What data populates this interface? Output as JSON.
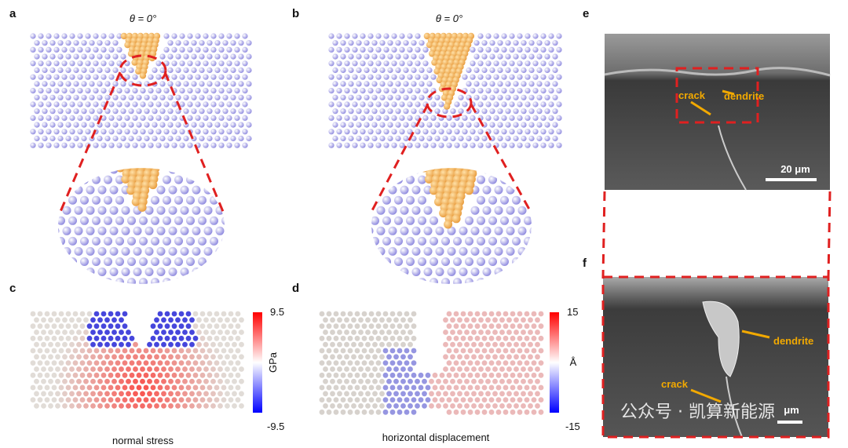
{
  "panels": {
    "a": {
      "label": "a",
      "angle": "θ = 0°"
    },
    "b": {
      "label": "b",
      "angle": "θ = 0°"
    },
    "c": {
      "label": "c",
      "colorbar": {
        "max": 9.5,
        "min": -9.5,
        "unit": "GPa"
      },
      "caption": "normal stress"
    },
    "d": {
      "label": "d",
      "colorbar": {
        "max": 15,
        "min": -15,
        "unit": "Å"
      },
      "caption": "horizontal displacement"
    },
    "e": {
      "label": "e",
      "annotations": [
        "crack",
        "dendrite"
      ],
      "scale_bar": "20 μm"
    },
    "f": {
      "label": "f",
      "annotations": [
        "dendrite",
        "crack"
      ],
      "scale_bar": "μm"
    }
  },
  "watermark": "公众号 · 凯算新能源"
}
